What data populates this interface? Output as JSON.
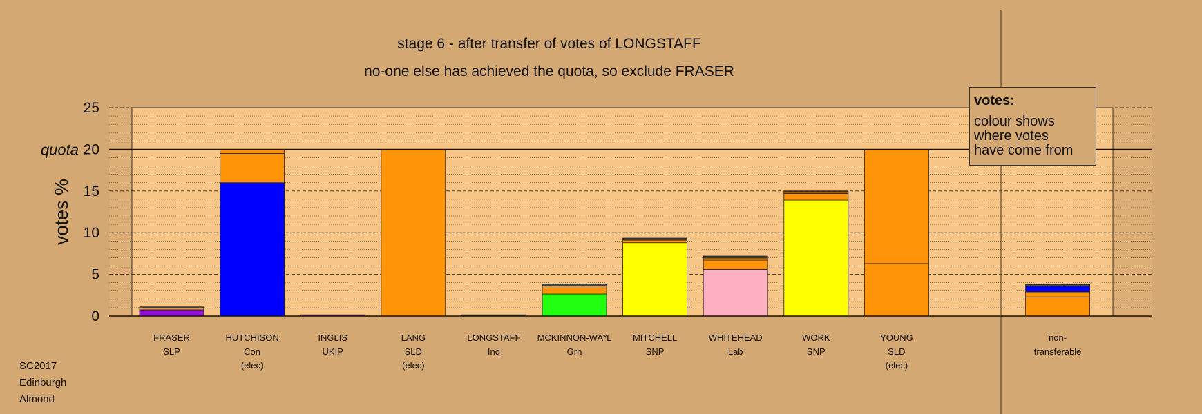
{
  "title_line1": "stage 6 - after transfer of votes of LONGSTAFF",
  "title_line2": "no-one else has achieved the quota, so exclude FRASER",
  "legend": {
    "title": "votes:",
    "lines": [
      "colour shows",
      "where votes",
      "have come from"
    ]
  },
  "footer": [
    "SC2017",
    "Edinburgh",
    "Almond"
  ],
  "quota_label": "quota",
  "colors": {
    "background": "#d4a872",
    "plot_background": "#f7c585",
    "sld": "#ff9408",
    "con": "#0000ff",
    "snp": "#ffff00",
    "grn": "#22ff11",
    "lab": "#ffb0c0",
    "slp": "#9010d0",
    "ukip": "#8a1aa0",
    "ind": "#444444"
  },
  "chart_data": {
    "type": "bar",
    "stacked": true,
    "ylabel": "votes %",
    "ylim": [
      0,
      25
    ],
    "yticks": [
      0,
      5,
      10,
      15,
      20,
      25
    ],
    "quota": 20,
    "grid": true,
    "categories": [
      {
        "name": "FRASER",
        "party": "SLP",
        "note": ""
      },
      {
        "name": "HUTCHISON",
        "party": "Con",
        "note": "(elec)"
      },
      {
        "name": "INGLIS",
        "party": "UKIP",
        "note": ""
      },
      {
        "name": "LANG",
        "party": "SLD",
        "note": "(elec)"
      },
      {
        "name": "LONGSTAFF",
        "party": "Ind",
        "note": ""
      },
      {
        "name": "MCKINNON-WA*L",
        "party": "Grn",
        "note": ""
      },
      {
        "name": "MITCHELL",
        "party": "SNP",
        "note": ""
      },
      {
        "name": "WHITEHEAD",
        "party": "Lab",
        "note": ""
      },
      {
        "name": "WORK",
        "party": "SNP",
        "note": ""
      },
      {
        "name": "YOUNG",
        "party": "SLD",
        "note": "(elec)"
      },
      {
        "name": "non-",
        "party": "transferable",
        "note": ""
      }
    ],
    "stacks": [
      [
        {
          "v": 0.75,
          "c": "slp"
        },
        {
          "v": 0.2,
          "c": "sld"
        },
        {
          "v": 0.15,
          "c": "ind"
        }
      ],
      [
        {
          "v": 16.0,
          "c": "con"
        },
        {
          "v": 3.5,
          "c": "sld"
        },
        {
          "v": 0.5,
          "c": "sld"
        }
      ],
      [
        {
          "v": 0.15,
          "c": "ukip"
        }
      ],
      [
        {
          "v": 20.0,
          "c": "sld"
        }
      ],
      [
        {
          "v": 0.15,
          "c": "ind"
        }
      ],
      [
        {
          "v": 2.65,
          "c": "grn"
        },
        {
          "v": 0.7,
          "c": "sld"
        },
        {
          "v": 0.25,
          "c": "sld"
        },
        {
          "v": 0.25,
          "c": "ind"
        }
      ],
      [
        {
          "v": 8.8,
          "c": "snp"
        },
        {
          "v": 0.3,
          "c": "sld"
        },
        {
          "v": 0.25,
          "c": "ind"
        }
      ],
      [
        {
          "v": 5.6,
          "c": "lab"
        },
        {
          "v": 1.1,
          "c": "sld"
        },
        {
          "v": 0.25,
          "c": "sld"
        },
        {
          "v": 0.25,
          "c": "ind"
        }
      ],
      [
        {
          "v": 13.9,
          "c": "snp"
        },
        {
          "v": 0.8,
          "c": "sld"
        },
        {
          "v": 0.2,
          "c": "sld"
        },
        {
          "v": 0.1,
          "c": "ind"
        }
      ],
      [
        {
          "v": 6.3,
          "c": "sld"
        },
        {
          "v": 13.7,
          "c": "sld"
        }
      ],
      [
        {
          "v": 2.3,
          "c": "sld"
        },
        {
          "v": 0.6,
          "c": "sld"
        },
        {
          "v": 0.7,
          "c": "con"
        },
        {
          "v": 0.2,
          "c": "ind"
        }
      ]
    ]
  }
}
